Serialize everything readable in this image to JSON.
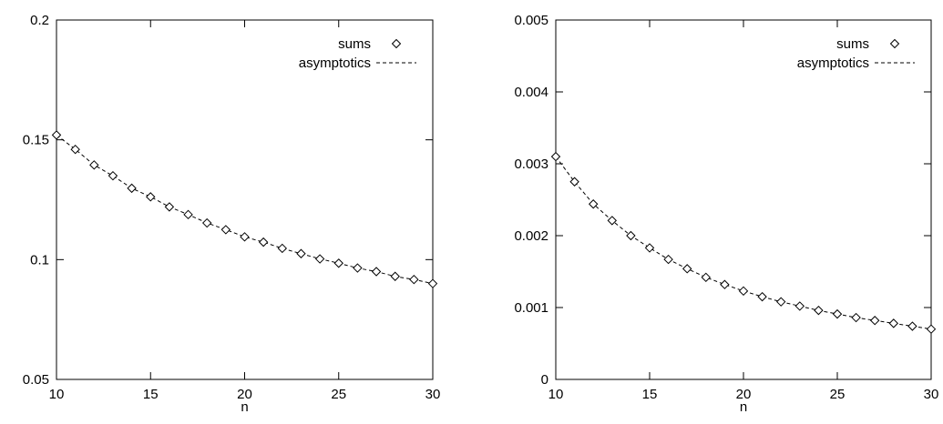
{
  "chart_data": [
    {
      "type": "scatter",
      "title": "",
      "xlabel": "n",
      "ylabel": "",
      "xlim": [
        10,
        30
      ],
      "ylim": [
        0.05,
        0.2
      ],
      "xticks": [
        "10",
        "15",
        "20",
        "25",
        "30"
      ],
      "yticks": [
        "0.05",
        "0.1",
        "0.15",
        "0.2"
      ],
      "grid": false,
      "legend_position": "top-right",
      "series": [
        {
          "name": "sums",
          "marker": "diamond",
          "x": [
            10,
            11,
            12,
            13,
            14,
            15,
            16,
            17,
            18,
            19,
            20,
            21,
            22,
            23,
            24,
            25,
            26,
            27,
            28,
            29,
            30
          ],
          "y": [
            0.152,
            0.146,
            0.1395,
            0.135,
            0.1298,
            0.1262,
            0.122,
            0.1188,
            0.1153,
            0.1125,
            0.1095,
            0.1073,
            0.1047,
            0.1025,
            0.1003,
            0.0985,
            0.0965,
            0.095,
            0.093,
            0.0917,
            0.09
          ]
        },
        {
          "name": "asymptotics",
          "line": "dashed",
          "x": [
            10,
            11,
            12,
            13,
            14,
            15,
            16,
            17,
            18,
            19,
            20,
            21,
            22,
            23,
            24,
            25,
            26,
            27,
            28,
            29,
            30
          ],
          "y": [
            0.152,
            0.146,
            0.1395,
            0.135,
            0.1298,
            0.1262,
            0.122,
            0.1188,
            0.1153,
            0.1125,
            0.1095,
            0.1073,
            0.1047,
            0.1025,
            0.1003,
            0.0985,
            0.0965,
            0.095,
            0.093,
            0.0917,
            0.09
          ]
        }
      ]
    },
    {
      "type": "scatter",
      "title": "",
      "xlabel": "n",
      "ylabel": "",
      "xlim": [
        10,
        30
      ],
      "ylim": [
        0,
        0.005
      ],
      "xticks": [
        "10",
        "15",
        "20",
        "25",
        "30"
      ],
      "yticks": [
        "0",
        "0.001",
        "0.002",
        "0.003",
        "0.004",
        "0.005"
      ],
      "grid": false,
      "legend_position": "top-right",
      "series": [
        {
          "name": "sums",
          "marker": "diamond",
          "x": [
            10,
            11,
            12,
            13,
            14,
            15,
            16,
            17,
            18,
            19,
            20,
            21,
            22,
            23,
            24,
            25,
            26,
            27,
            28,
            29,
            30
          ],
          "y": [
            0.0031,
            0.00275,
            0.00244,
            0.00221,
            0.002,
            0.00183,
            0.00167,
            0.00154,
            0.00142,
            0.00132,
            0.00123,
            0.00115,
            0.00108,
            0.00102,
            0.00096,
            0.00091,
            0.00086,
            0.00082,
            0.00078,
            0.00074,
            0.0007
          ]
        },
        {
          "name": "asymptotics",
          "line": "dashed",
          "x": [
            10,
            11,
            12,
            13,
            14,
            15,
            16,
            17,
            18,
            19,
            20,
            21,
            22,
            23,
            24,
            25,
            26,
            27,
            28,
            29,
            30
          ],
          "y": [
            0.0031,
            0.00275,
            0.00244,
            0.00221,
            0.002,
            0.00183,
            0.00167,
            0.00154,
            0.00142,
            0.00132,
            0.00123,
            0.00115,
            0.00108,
            0.00102,
            0.00096,
            0.00091,
            0.00086,
            0.00082,
            0.00078,
            0.00074,
            0.0007
          ]
        }
      ]
    }
  ]
}
